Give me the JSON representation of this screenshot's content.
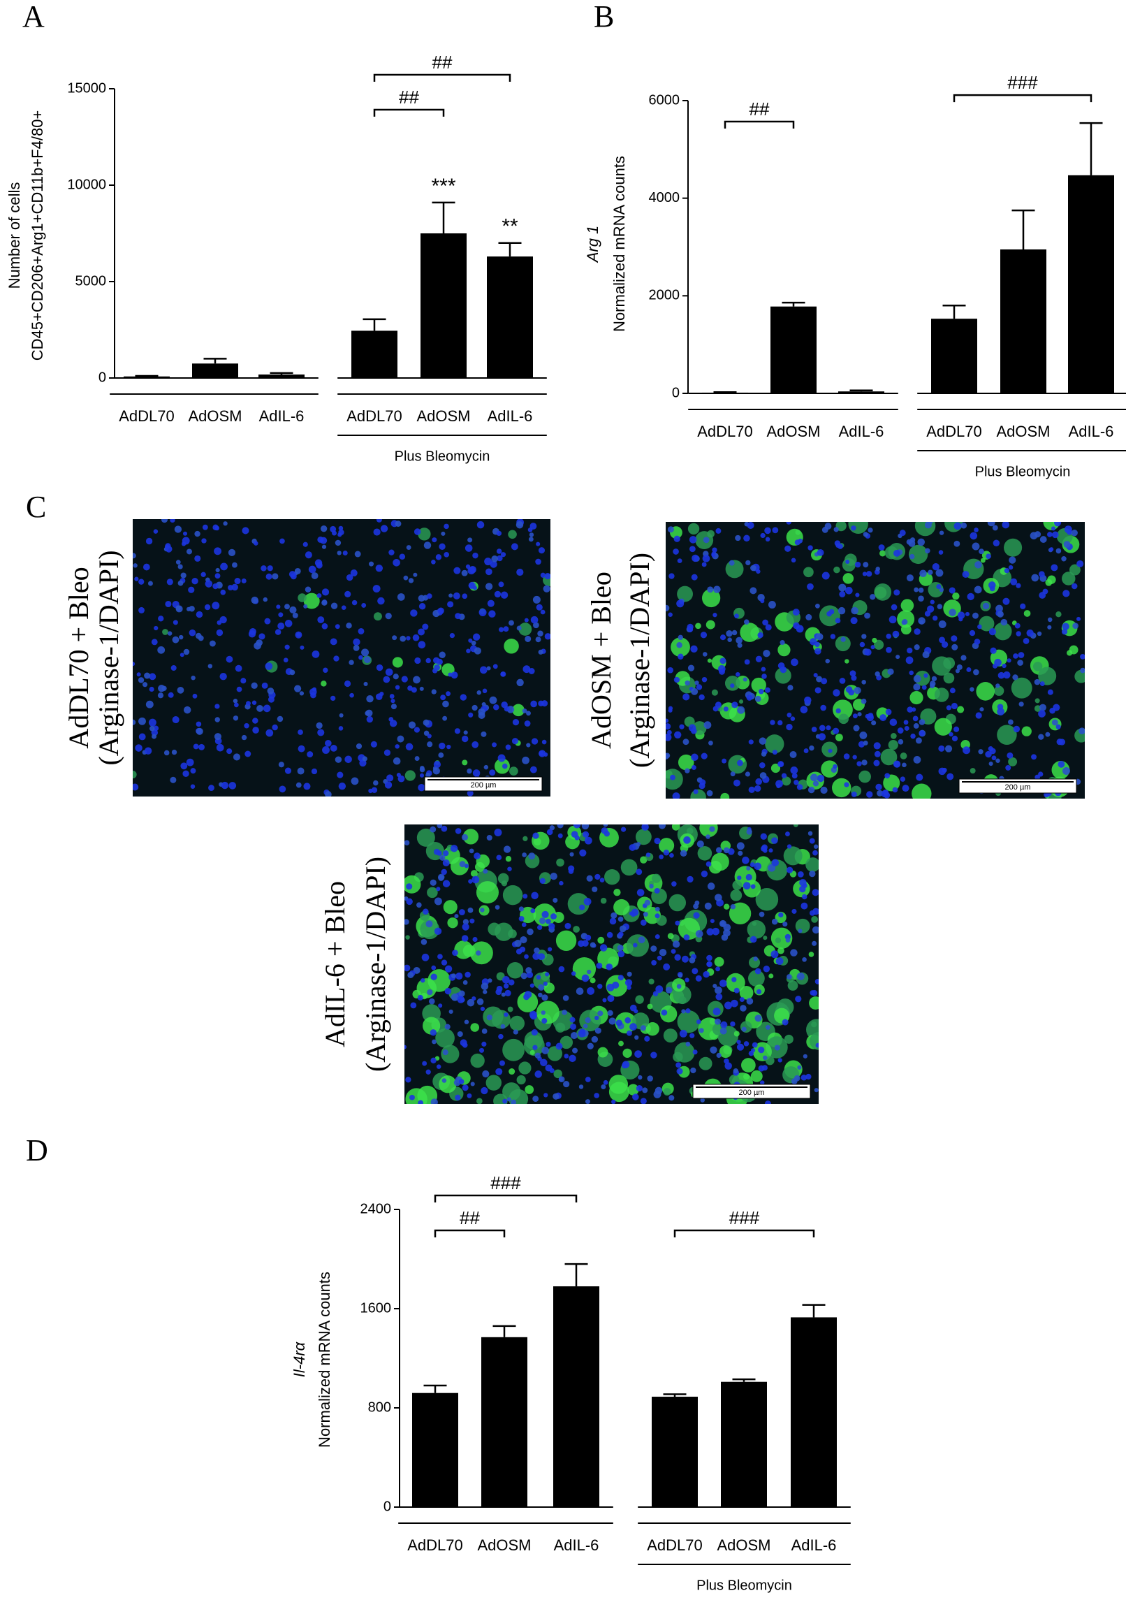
{
  "panel_labels": [
    "A",
    "B",
    "C",
    "D"
  ],
  "chart_data": [
    {
      "type": "bar",
      "ylabel": [
        "Number of cells",
        "CD45+CD206+Arg1+CD11b+F4/80+"
      ],
      "ylabel_italic": [
        false,
        false
      ],
      "categories": [
        "AdDL70",
        "AdOSM",
        "AdIL-6",
        "AdDL70",
        "AdOSM",
        "AdIL-6"
      ],
      "values": [
        80,
        750,
        180,
        2450,
        7500,
        6300
      ],
      "errors": [
        30,
        250,
        80,
        600,
        1600,
        700
      ],
      "bar_labels": [
        null,
        null,
        null,
        null,
        "***",
        "**"
      ],
      "comparisons": [
        {
          "label": "##",
          "between": [
            3,
            4
          ]
        },
        {
          "label": "##",
          "between": [
            3,
            5
          ]
        }
      ],
      "group_label": "Plus Bleomycin",
      "color": "#000000",
      "ylim": [
        0,
        15000
      ],
      "yticks": [
        0,
        5000,
        10000,
        15000
      ]
    },
    {
      "type": "bar",
      "ylabel": [
        "Arg 1",
        "Normalized mRNA counts"
      ],
      "ylabel_italic": [
        true,
        false
      ],
      "categories": [
        "AdDL70",
        "AdOSM",
        "AdIL-6",
        "AdDL70",
        "AdOSM",
        "AdIL-6"
      ],
      "values": [
        15,
        1780,
        40,
        1530,
        2950,
        4470
      ],
      "errors": [
        10,
        80,
        20,
        270,
        800,
        1070
      ],
      "bar_labels": [
        null,
        null,
        null,
        null,
        null,
        null
      ],
      "comparisons": [
        {
          "label": "##",
          "between": [
            0,
            1
          ]
        },
        {
          "label": "###",
          "between": [
            3,
            5
          ]
        }
      ],
      "group_label": "Plus Bleomycin",
      "color": "#000000",
      "ylim": [
        0,
        6000
      ],
      "yticks": [
        0,
        2000,
        4000,
        6000
      ]
    },
    {
      "type": "bar",
      "ylabel": [
        "Il-4rα",
        "Normalized mRNA counts"
      ],
      "ylabel_italic": [
        true,
        false
      ],
      "categories": [
        "AdDL70",
        "AdOSM",
        "AdIL-6",
        "AdDL70",
        "AdOSM",
        "AdIL-6"
      ],
      "values": [
        920,
        1370,
        1780,
        890,
        1010,
        1530
      ],
      "errors": [
        60,
        90,
        180,
        20,
        20,
        100
      ],
      "bar_labels": [
        null,
        null,
        null,
        null,
        null,
        null
      ],
      "comparisons": [
        {
          "label": "##",
          "between": [
            0,
            1
          ]
        },
        {
          "label": "###",
          "between": [
            0,
            2
          ]
        },
        {
          "label": "###",
          "between": [
            3,
            5
          ]
        }
      ],
      "group_label": "Plus Bleomycin",
      "color": "#000000",
      "ylim": [
        0,
        2400
      ],
      "yticks": [
        0,
        800,
        1600,
        2400
      ]
    }
  ],
  "images": [
    {
      "caption": [
        "AdDL70 + Bleo",
        "(Arginase-1/DAPI)"
      ],
      "scale_bar": "200 µm"
    },
    {
      "caption": [
        "AdOSM + Bleo",
        "(Arginase-1/DAPI)"
      ],
      "scale_bar": "200 µm"
    },
    {
      "caption": [
        "AdIL-6 + Bleo",
        "(Arginase-1/DAPI)"
      ],
      "scale_bar": "200 µm"
    }
  ]
}
